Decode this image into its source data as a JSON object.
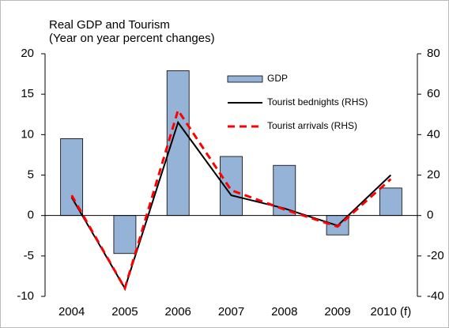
{
  "chart_data": {
    "type": "bar-line",
    "title": "Real GDP and Tourism",
    "subtitle": "(Year on year percent changes)",
    "categories": [
      "2004",
      "2005",
      "2006",
      "2007",
      "2008",
      "2009",
      "2010 (f)"
    ],
    "ylim": [
      -10,
      20
    ],
    "yticks": [
      -10,
      -5,
      0,
      5,
      10,
      15,
      20
    ],
    "y2lim": [
      -40,
      80
    ],
    "y2ticks": [
      -40,
      -20,
      0,
      20,
      40,
      60,
      80
    ],
    "series": [
      {
        "name": "GDP",
        "type": "bar",
        "color": "#95b3d7",
        "values": [
          9.5,
          -4.7,
          17.9,
          7.3,
          6.2,
          -2.4,
          3.4
        ]
      },
      {
        "name": "Tourist bednights (RHS)",
        "type": "line",
        "axis": "y2",
        "color": "#000000",
        "dashed": false,
        "values": [
          9,
          -36,
          46,
          10,
          3.5,
          -5,
          20
        ]
      },
      {
        "name": "Tourist arrivals (RHS)",
        "type": "line",
        "axis": "y2",
        "color": "#ff0000",
        "dashed": true,
        "values": [
          10,
          -36,
          52,
          12.5,
          3,
          -5.5,
          18
        ]
      }
    ]
  }
}
